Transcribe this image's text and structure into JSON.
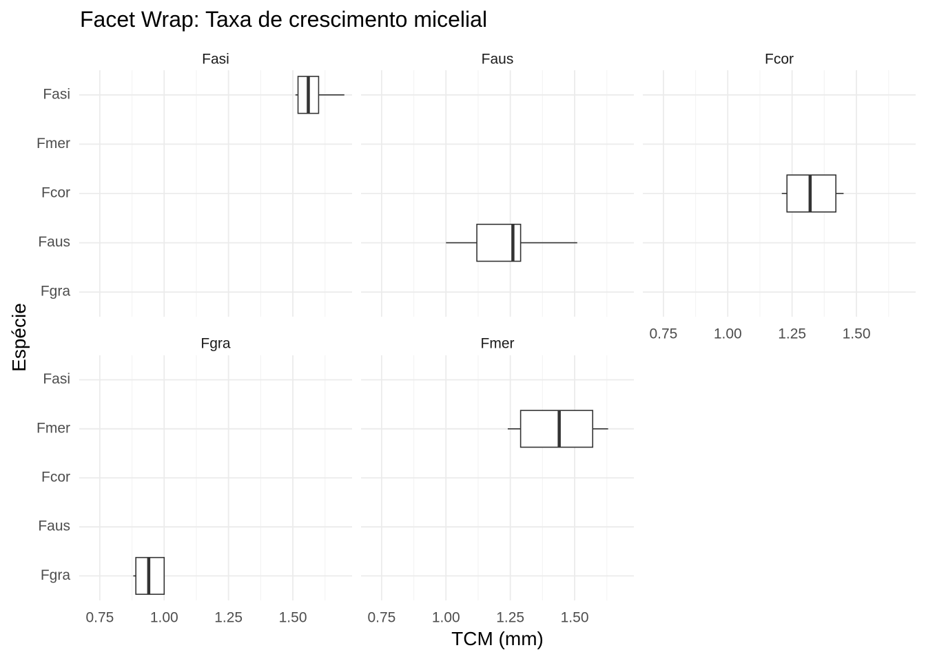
{
  "chart_data": {
    "type": "boxplot",
    "title": "Facet Wrap: Taxa de crescimento micelial",
    "xlabel": "TCM (mm)",
    "ylabel": "Espécie",
    "orientation": "horizontal",
    "xlim": [
      0.67,
      1.73
    ],
    "x_ticks": [
      0.75,
      1.0,
      1.25,
      1.5
    ],
    "x_tick_labels": [
      "0.75",
      "1.00",
      "1.25",
      "1.50"
    ],
    "categories": [
      "Fasi",
      "Fmer",
      "Fcor",
      "Faus",
      "Fgra"
    ],
    "grid": true,
    "facets": [
      {
        "name": "Fasi",
        "category": "Fasi",
        "box": {
          "min": 1.51,
          "q1": 1.52,
          "median": 1.56,
          "q3": 1.6,
          "max": 1.7
        }
      },
      {
        "name": "Faus",
        "category": "Faus",
        "box": {
          "min": 1.0,
          "q1": 1.12,
          "median": 1.26,
          "q3": 1.29,
          "max": 1.51
        }
      },
      {
        "name": "Fcor",
        "category": "Fcor",
        "box": {
          "min": 1.21,
          "q1": 1.23,
          "median": 1.32,
          "q3": 1.42,
          "max": 1.45
        }
      },
      {
        "name": "Fgra",
        "category": "Fgra",
        "box": {
          "min": 0.88,
          "q1": 0.89,
          "median": 0.94,
          "q3": 1.0,
          "max": 1.0
        }
      },
      {
        "name": "Fmer",
        "category": "Fmer",
        "box": {
          "min": 1.24,
          "q1": 1.29,
          "median": 1.44,
          "q3": 1.57,
          "max": 1.63
        }
      }
    ]
  },
  "colors": {
    "grid_major": "#ebebeb",
    "grid_minor": "#f4f4f4",
    "box_stroke": "#333333",
    "tick_text": "#4d4d4d",
    "strip_text": "#1a1a1a"
  }
}
